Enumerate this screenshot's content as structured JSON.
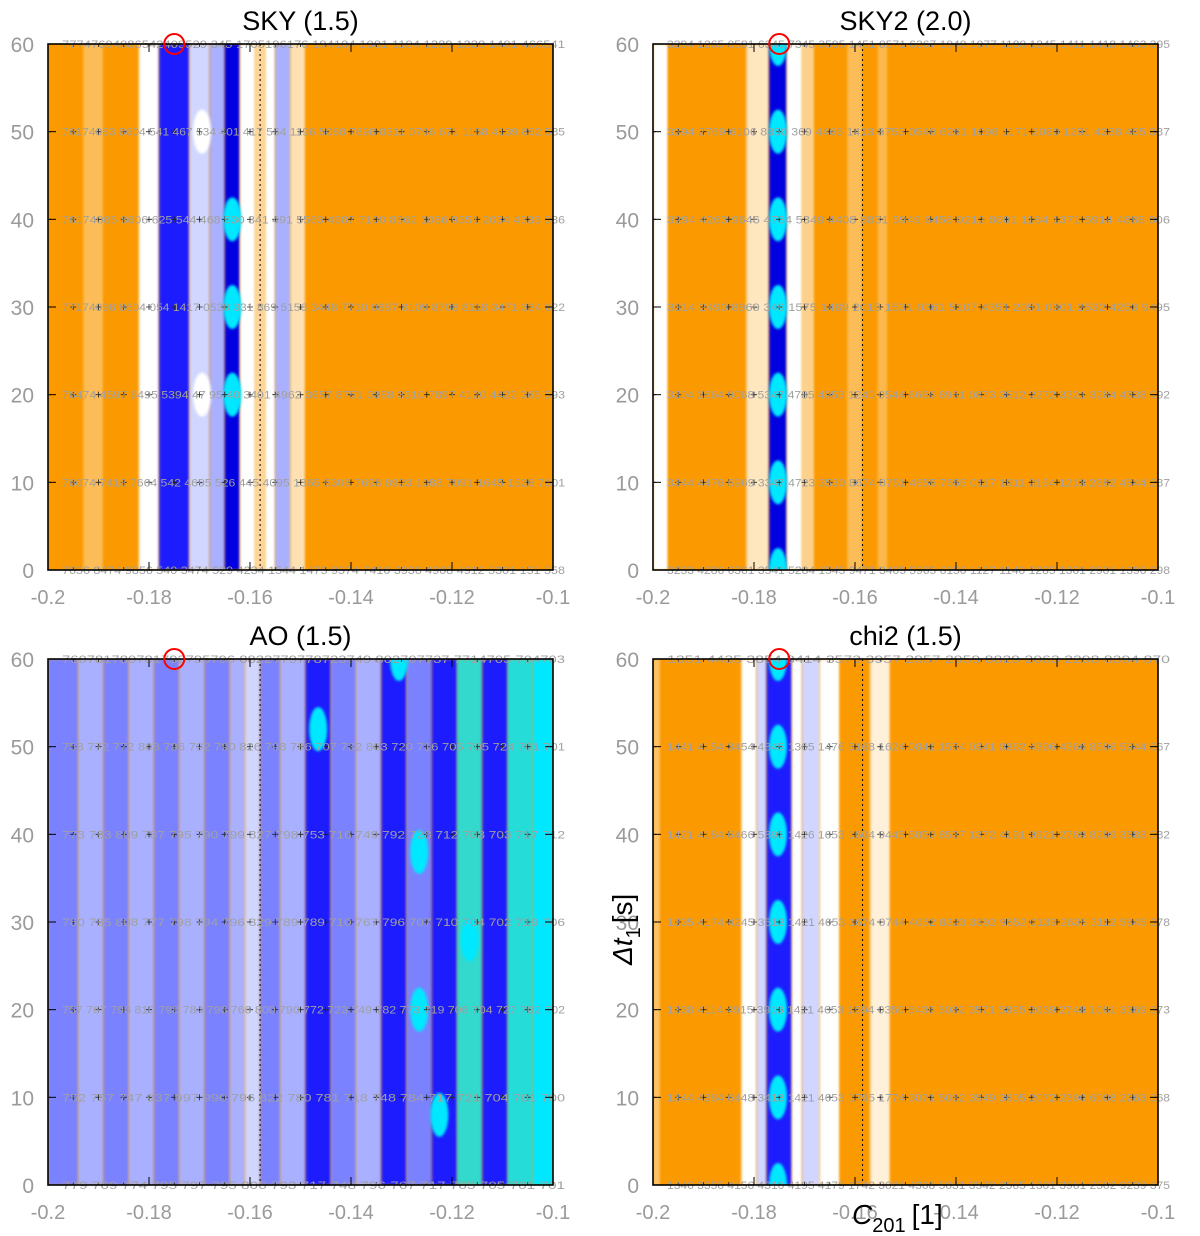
{
  "colors": {
    "orange": "#fb9a00",
    "white": "#ffffff",
    "pale_blue": "#d0d6ff",
    "light_blue": "#a9b0ff",
    "mid_blue": "#7a82ff",
    "blue": "#1b1dff",
    "dark_blue": "#0000e0",
    "cyan": "#00e8ff",
    "marker": "#ff0000"
  },
  "overlay": {
    "ylabel_text": "Δt",
    "ylabel_sub": "1",
    "ylabel_unit": "[s]",
    "xlabel_text": "C",
    "xlabel_sub": "201",
    "xlabel_unit": "[1]"
  },
  "chart_data": [
    {
      "type": "heatmap",
      "title": "SKY (1.5)",
      "xlim": [
        -0.2,
        -0.1
      ],
      "ylim": [
        0,
        60
      ],
      "xticks": [
        "-0.2",
        "-0.18",
        "-0.16",
        "-0.14",
        "-0.12",
        "-0.1"
      ],
      "yticks": [
        "0",
        "10",
        "20",
        "30",
        "40",
        "50",
        "60"
      ],
      "best_marker": {
        "x": -0.175,
        "y": 60
      },
      "reference_line_x": -0.158,
      "columns": [
        {
          "x": [
            -0.2,
            -0.193
          ],
          "color": "orange"
        },
        {
          "x": [
            -0.193,
            -0.189
          ],
          "color": "white",
          "opacity": 0.35
        },
        {
          "x": [
            -0.189,
            -0.182
          ],
          "color": "orange"
        },
        {
          "x": [
            -0.182,
            -0.178
          ],
          "color": "white"
        },
        {
          "x": [
            -0.178,
            -0.172
          ],
          "color": "blue"
        },
        {
          "x": [
            -0.172,
            -0.168
          ],
          "color": "pale_blue"
        },
        {
          "x": [
            -0.168,
            -0.165
          ],
          "color": "light_blue"
        },
        {
          "x": [
            -0.165,
            -0.162
          ],
          "color": "dark_blue"
        },
        {
          "x": [
            -0.162,
            -0.159
          ],
          "color": "white"
        },
        {
          "x": [
            -0.159,
            -0.157
          ],
          "color": "white",
          "opacity": 0.6
        },
        {
          "x": [
            -0.157,
            -0.155
          ],
          "color": "white"
        },
        {
          "x": [
            -0.155,
            -0.152
          ],
          "color": "light_blue"
        },
        {
          "x": [
            -0.152,
            -0.149
          ],
          "color": "white",
          "opacity": 0.7
        },
        {
          "x": [
            -0.149,
            -0.1
          ],
          "color": "orange"
        }
      ],
      "blobs": [
        {
          "x": -0.1635,
          "y": 40,
          "color": "cyan"
        },
        {
          "x": -0.1635,
          "y": 30,
          "color": "cyan"
        },
        {
          "x": -0.1635,
          "y": 20,
          "color": "cyan"
        },
        {
          "x": -0.1695,
          "y": 20,
          "color": "white"
        },
        {
          "x": -0.1695,
          "y": 50,
          "color": "white"
        }
      ],
      "value_rows": [
        {
          "y": 60,
          "text": "77747694086542409529 345 1705196176 194104 1081 1104 1229 1320 1401 466541"
        },
        {
          "y": 50,
          "text": "76174083 8604 541 467 534 401 417 554 1196 5068 7698 8311 0796 671 1158 4139 862 585"
        },
        {
          "y": 40,
          "text": "76174085 8606 625 544 468 530 341 491 5563 4687 7100 8362 1086 9351 2034 4333 536"
        },
        {
          "y": 30,
          "text": "77174098 8604 054 1417 0530 331 869 5156 3448 7710 0887 8109 8708 8118 3471 334 622"
        },
        {
          "y": 20,
          "text": "76474 4597 6495 5394 47 95 40 3401 4962 3657 8751 0388 3310 7897 4120 4422 365 593"
        },
        {
          "y": 10,
          "text": "76074 7418 7664 542 4695 526 445 4095 1365 5306 7698 8923 1088 7091 1645 1526 7601"
        },
        {
          "y": 0,
          "text": "7656 8474 9856 540 3474 529 4234 1544 1475 9574 7410 3936 4908 4912 5301 151 558"
        }
      ]
    },
    {
      "type": "heatmap",
      "title": "SKY2 (2.0)",
      "xlim": [
        -0.2,
        -0.1
      ],
      "ylim": [
        0,
        60
      ],
      "xticks": [
        "-0.2",
        "-0.18",
        "-0.16",
        "-0.14",
        "-0.12",
        "-0.1"
      ],
      "yticks": [
        "0",
        "10",
        "20",
        "30",
        "40",
        "50",
        "60"
      ],
      "best_marker": {
        "x": -0.175,
        "y": 60
      },
      "reference_line_x": -0.1585,
      "columns": [
        {
          "x": [
            -0.2,
            -0.197
          ],
          "color": "white"
        },
        {
          "x": [
            -0.197,
            -0.1815
          ],
          "color": "orange"
        },
        {
          "x": [
            -0.1815,
            -0.177
          ],
          "color": "white",
          "opacity": 0.75
        },
        {
          "x": [
            -0.177,
            -0.1735
          ],
          "color": "dark_blue"
        },
        {
          "x": [
            -0.1735,
            -0.1705
          ],
          "color": "white"
        },
        {
          "x": [
            -0.1705,
            -0.168
          ],
          "color": "white",
          "opacity": 0.55
        },
        {
          "x": [
            -0.168,
            -0.1615
          ],
          "color": "orange"
        },
        {
          "x": [
            -0.1615,
            -0.1585
          ],
          "color": "white",
          "opacity": 0.35
        },
        {
          "x": [
            -0.1585,
            -0.1555
          ],
          "color": "orange"
        },
        {
          "x": [
            -0.1555,
            -0.1535
          ],
          "color": "white",
          "opacity": 0.3
        },
        {
          "x": [
            -0.1535,
            -0.1
          ],
          "color": "orange"
        }
      ],
      "blobs": [
        {
          "x": -0.17525,
          "y": 60,
          "color": "cyan"
        },
        {
          "x": -0.17525,
          "y": 50,
          "color": "cyan"
        },
        {
          "x": -0.17525,
          "y": 40,
          "color": "cyan"
        },
        {
          "x": -0.17525,
          "y": 30,
          "color": "cyan"
        },
        {
          "x": -0.17525,
          "y": 20,
          "color": "cyan"
        },
        {
          "x": -0.17525,
          "y": 10,
          "color": "cyan"
        },
        {
          "x": -0.17525,
          "y": 0,
          "color": "cyan"
        }
      ],
      "value_rows": [
        {
          "y": 60,
          "text": "3294 1265 0591 6345 7345 3595 1451 0571 6367 1040 1077 1180 1245 1411 1418 1463 395"
        },
        {
          "y": 50,
          "text": "3294 2769 6106 8350 369 4466 1413 3753 0549 6261 1098 1171 2080 1291 4238 465 387"
        },
        {
          "y": 40,
          "text": "3294 4263 9646 4734 5349 4408 8831 5949 6456 0212 8601 1184 1371 5914 4888 806"
        },
        {
          "y": 30,
          "text": "3314 2490 8969 349 1575 1489 2015 1531 0361 5107 4351 2051 0301 2532 4253 9495"
        },
        {
          "y": 20,
          "text": "3304 2664 9068 5347 4785 4953 1240 0544 6666 8961 0873 3512 2272 3321 3284 4538 992"
        },
        {
          "y": 10,
          "text": "3344 4476 6969 3347 4723 3530 8674 0751 4655 7655 0117 1911 2164 1213 2882 4844 287"
        },
        {
          "y": 0,
          "text": "3253 4286 6361 3541 5284 1545 9471 3405 5965 6150 1127 1140 1285 1361 2901 1390 298"
        }
      ]
    },
    {
      "type": "heatmap",
      "title": "AO (1.5)",
      "xlim": [
        -0.2,
        -0.1
      ],
      "ylim": [
        0,
        60
      ],
      "xticks": [
        "-0.2",
        "-0.18",
        "-0.16",
        "-0.14",
        "-0.12",
        "-0.1"
      ],
      "yticks": [
        "0",
        "10",
        "20",
        "30",
        "40",
        "50",
        "60"
      ],
      "best_marker": {
        "x": -0.175,
        "y": 60
      },
      "reference_line_x": -0.158,
      "columns": [
        {
          "x": [
            -0.2,
            -0.194
          ],
          "color": "mid_blue"
        },
        {
          "x": [
            -0.194,
            -0.189
          ],
          "color": "light_blue"
        },
        {
          "x": [
            -0.189,
            -0.184
          ],
          "color": "mid_blue"
        },
        {
          "x": [
            -0.184,
            -0.179
          ],
          "color": "light_blue"
        },
        {
          "x": [
            -0.179,
            -0.174
          ],
          "color": "mid_blue"
        },
        {
          "x": [
            -0.174,
            -0.169
          ],
          "color": "light_blue"
        },
        {
          "x": [
            -0.169,
            -0.164
          ],
          "color": "mid_blue"
        },
        {
          "x": [
            -0.164,
            -0.161
          ],
          "color": "light_blue"
        },
        {
          "x": [
            -0.161,
            -0.158
          ],
          "color": "pale_blue"
        },
        {
          "x": [
            -0.158,
            -0.154
          ],
          "color": "mid_blue"
        },
        {
          "x": [
            -0.154,
            -0.149
          ],
          "color": "light_blue"
        },
        {
          "x": [
            -0.149,
            -0.144
          ],
          "color": "blue"
        },
        {
          "x": [
            -0.144,
            -0.139
          ],
          "color": "mid_blue"
        },
        {
          "x": [
            -0.139,
            -0.134
          ],
          "color": "light_blue"
        },
        {
          "x": [
            -0.134,
            -0.129
          ],
          "color": "blue"
        },
        {
          "x": [
            -0.129,
            -0.124
          ],
          "color": "mid_blue"
        },
        {
          "x": [
            -0.124,
            -0.119
          ],
          "color": "blue"
        },
        {
          "x": [
            -0.119,
            -0.114
          ],
          "color": "cyan",
          "opacity": 0.8
        },
        {
          "x": [
            -0.114,
            -0.109
          ],
          "color": "blue"
        },
        {
          "x": [
            -0.109,
            -0.104
          ],
          "color": "cyan",
          "opacity": 0.85
        },
        {
          "x": [
            -0.104,
            -0.1
          ],
          "color": "cyan"
        }
      ],
      "blobs": [
        {
          "x": -0.1465,
          "y": 52,
          "color": "cyan"
        },
        {
          "x": -0.1305,
          "y": 60,
          "color": "cyan"
        },
        {
          "x": -0.1265,
          "y": 38,
          "color": "cyan"
        },
        {
          "x": -0.1265,
          "y": 20,
          "color": "cyan"
        },
        {
          "x": -0.1225,
          "y": 8,
          "color": "cyan"
        },
        {
          "x": -0.1165,
          "y": 28,
          "color": "cyan"
        }
      ],
      "value_rows": [
        {
          "y": 60,
          "text": "760781780781792795796 8822779778723749 802707737 7714705 704703"
        },
        {
          "y": 50,
          "text": "758 772 772 808 796 792 790 826 798 786 707 732 803 720 716 705 705 724 701 701"
        },
        {
          "y": 40,
          "text": "773 783 809 787 795 790 799 827 798 753 716 749 792 728 712 703 703 717 712"
        },
        {
          "y": 30,
          "text": "760 785 808 777 798 794 796 829 789 789 710 767 796 707 710 704 702 719 706"
        },
        {
          "y": 20,
          "text": "757 767 796 810 798 784 796 766 800 790 772 723 749 782 773 719 706 704 727 702 702"
        },
        {
          "y": 10,
          "text": "752 757 747 937 997 990 796 822 780 781 718 748 784 717 721 704 701 700"
        },
        {
          "y": 0,
          "text": "779 769 774 795 797 795 806 793 717 748 796 767 717 705 705 701 701"
        }
      ]
    },
    {
      "type": "heatmap",
      "title": "chi2 (1.5)",
      "xlim": [
        -0.2,
        -0.1
      ],
      "ylim": [
        0,
        60
      ],
      "xticks": [
        "-0.2",
        "-0.18",
        "-0.16",
        "-0.14",
        "-0.12",
        "-0.1"
      ],
      "yticks": [
        "0",
        "10",
        "20",
        "30",
        "40",
        "50",
        "60"
      ],
      "best_marker": {
        "x": -0.175,
        "y": 60
      },
      "reference_line_x": -0.1585,
      "columns": [
        {
          "x": [
            -0.2,
            -0.1985
          ],
          "color": "white",
          "opacity": 0.4
        },
        {
          "x": [
            -0.1985,
            -0.1825
          ],
          "color": "orange"
        },
        {
          "x": [
            -0.1825,
            -0.1795
          ],
          "color": "white"
        },
        {
          "x": [
            -0.1795,
            -0.1775
          ],
          "color": "pale_blue"
        },
        {
          "x": [
            -0.1775,
            -0.1725
          ],
          "color": "blue"
        },
        {
          "x": [
            -0.1725,
            -0.1705
          ],
          "color": "white"
        },
        {
          "x": [
            -0.1705,
            -0.167
          ],
          "color": "pale_blue"
        },
        {
          "x": [
            -0.167,
            -0.163
          ],
          "color": "white"
        },
        {
          "x": [
            -0.163,
            -0.157
          ],
          "color": "orange"
        },
        {
          "x": [
            -0.157,
            -0.153
          ],
          "color": "white",
          "opacity": 0.85
        },
        {
          "x": [
            -0.153,
            -0.1
          ],
          "color": "orange"
        }
      ],
      "blobs": [
        {
          "x": -0.17525,
          "y": 60,
          "color": "cyan"
        },
        {
          "x": -0.17525,
          "y": 50,
          "color": "cyan"
        },
        {
          "x": -0.17525,
          "y": 40,
          "color": "cyan"
        },
        {
          "x": -0.17525,
          "y": 30,
          "color": "cyan"
        },
        {
          "x": -0.17525,
          "y": 20,
          "color": "cyan"
        },
        {
          "x": -0.17525,
          "y": 10,
          "color": "cyan"
        },
        {
          "x": -0.17525,
          "y": 0,
          "color": "cyan"
        }
      ],
      "value_rows": [
        {
          "y": 60,
          "text": "1351 4435 3854 3414 3573 3957 2957 2959 8829 2063 2298 8394 870"
        },
        {
          "y": 50,
          "text": "1441 4154 3454 4345 1365 1476 5168 1624 0841 1554 0341 0362 4396 4366 8596 5944 867"
        },
        {
          "y": 40,
          "text": "1421 4184 6466 5391 1426 1653 1604 9445 5850 8537 1372 4191 3921 2769 8299 3583 582"
        },
        {
          "y": 30,
          "text": "1335 4174 4245 3513 1421 4653 1674 0744 4052 8323 3892 9552 0139 2635 3112 5845 378"
        },
        {
          "y": 20,
          "text": "1338 4114 4915 3913 1421 4653 1594 0350 5436 5082 3571 5895 2039 2748 1061 3369 373"
        },
        {
          "y": 10,
          "text": "1344 4384 6448 3413 1421 4653 1795 1774 3071 5082 3549 3605 2072 2390 6008 2263 368"
        },
        {
          "y": 0,
          "text": "1346 3356 4156 4310 4195 4179 1742 3021 4308 5031 3542 2565 1301 3961 2502 9239 375"
        }
      ]
    }
  ]
}
